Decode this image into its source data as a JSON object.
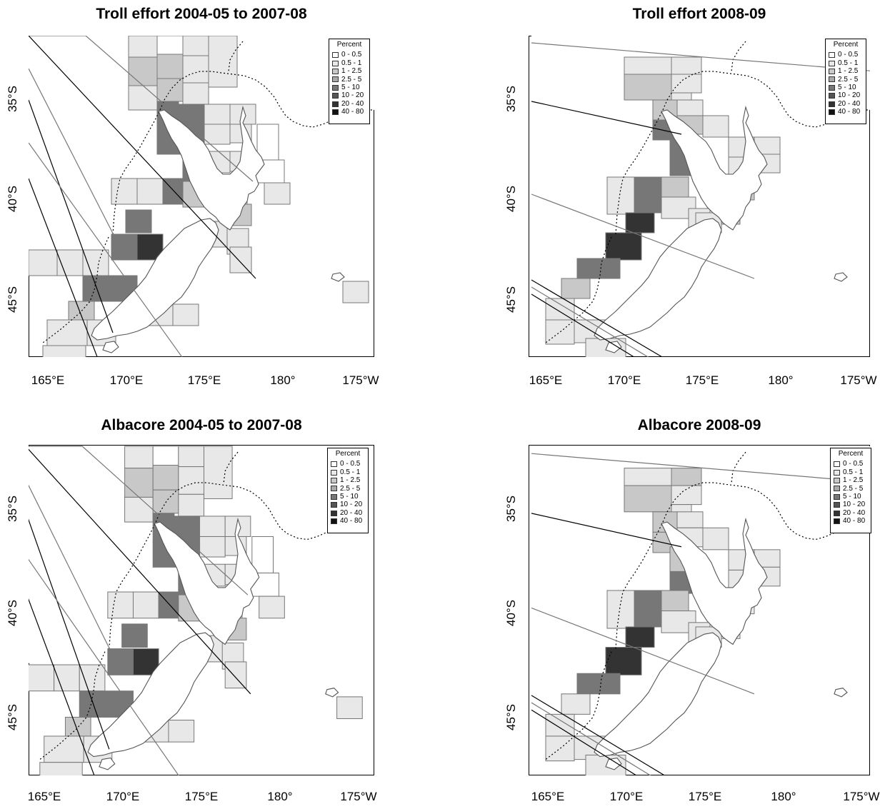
{
  "panels": [
    {
      "id": "tl",
      "title": "Troll effort 2004-05 to 2007-08"
    },
    {
      "id": "tr",
      "title": "Troll effort 2008-09"
    },
    {
      "id": "bl",
      "title": "Albacore 2004-05 to 2007-08"
    },
    {
      "id": "br",
      "title": "Albacore 2008-09"
    }
  ],
  "axes": {
    "x_ticks": [
      "165°E",
      "170°E",
      "175°E",
      "180°",
      "175°W"
    ],
    "y_ticks": [
      "35°S",
      "40°S",
      "45°S"
    ]
  },
  "legend": {
    "title": "Percent",
    "items": [
      {
        "label": "0 - 0.5",
        "color": "#ffffff"
      },
      {
        "label": "0.5 - 1",
        "color": "#e8e8e8"
      },
      {
        "label": "1 - 2.5",
        "color": "#c8c8c8"
      },
      {
        "label": "2.5 - 5",
        "color": "#a8a8a8"
      },
      {
        "label": "5 - 10",
        "color": "#777777"
      },
      {
        "label": "10 - 20",
        "color": "#555555"
      },
      {
        "label": "20 - 40",
        "color": "#333333"
      },
      {
        "label": "40 - 80",
        "color": "#111111"
      }
    ]
  }
}
